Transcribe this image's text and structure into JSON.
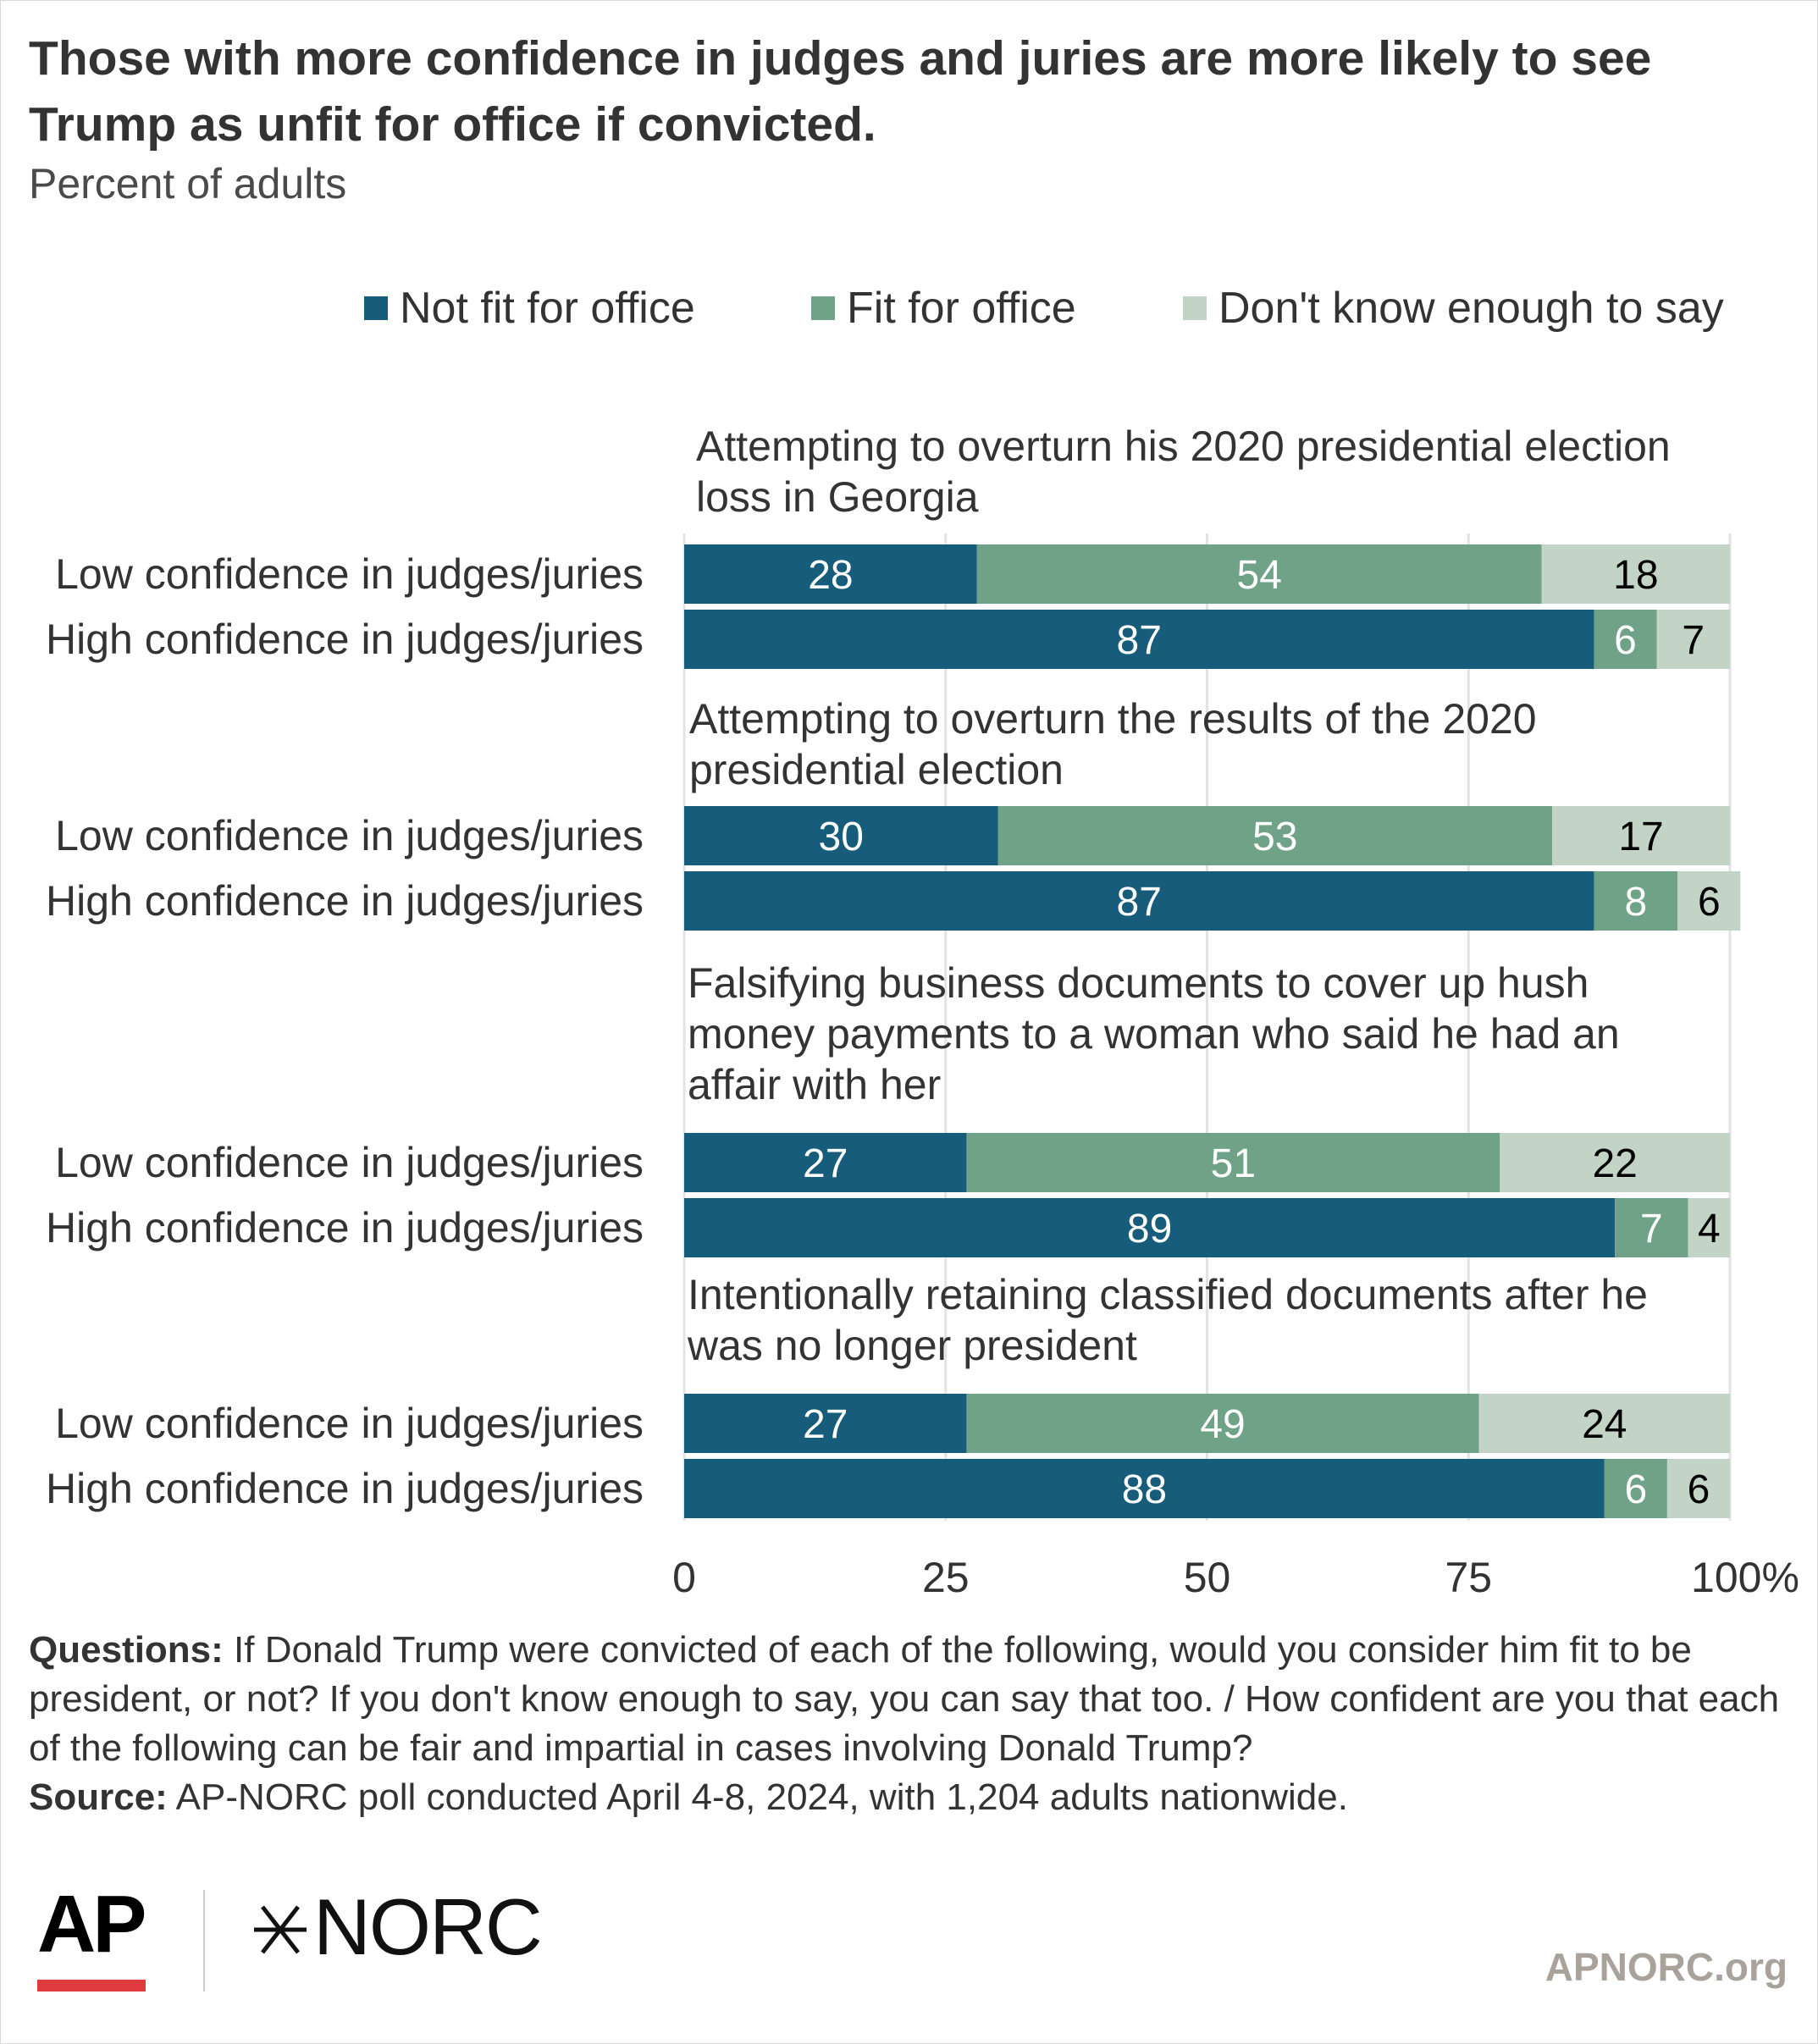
{
  "header": {
    "title": "Those with more confidence in judges and juries are more likely to see Trump as unfit for office if convicted.",
    "subtitle": "Percent of adults"
  },
  "legend": [
    {
      "label": "Not fit for office",
      "color": "#175c7a"
    },
    {
      "label": "Fit for office",
      "color": "#6fa287"
    },
    {
      "label": "Don't know enough to say",
      "color": "#c3d3c6"
    }
  ],
  "chart_data": {
    "type": "bar",
    "orientation": "horizontal",
    "stacked": true,
    "xlim": [
      0,
      100
    ],
    "xticks": [
      "0",
      "25",
      "50",
      "75",
      "100%"
    ],
    "grid": true,
    "legend_position": "top",
    "series_names": [
      "Not fit for office",
      "Fit for office",
      "Don't know enough to say"
    ],
    "series_colors": [
      "#175c7a",
      "#6fa287",
      "#c3d3c6"
    ],
    "label_colors": [
      "#ffffff",
      "#ffffff",
      "#000000"
    ],
    "groups": [
      {
        "title_lines": [
          "Attempting to overturn his 2020 presidential election",
          "loss in Georgia"
        ],
        "rows": [
          {
            "label": "Low confidence in judges/juries",
            "values": [
              28,
              54,
              18
            ]
          },
          {
            "label": "High confidence in judges/juries",
            "values": [
              87,
              6,
              7
            ]
          }
        ]
      },
      {
        "title_lines": [
          "Attempting to overturn the results of the 2020",
          "presidential election"
        ],
        "rows": [
          {
            "label": "Low confidence in judges/juries",
            "values": [
              30,
              53,
              17
            ]
          },
          {
            "label": "High confidence in judges/juries",
            "values": [
              87,
              8,
              6
            ]
          }
        ]
      },
      {
        "title_lines": [
          "Falsifying business documents to cover up hush",
          "money payments to a woman who said he had an",
          "affair with her"
        ],
        "rows": [
          {
            "label": "Low confidence in judges/juries",
            "values": [
              27,
              51,
              22
            ]
          },
          {
            "label": "High confidence in judges/juries",
            "values": [
              89,
              7,
              4
            ]
          }
        ]
      },
      {
        "title_lines": [
          "Intentionally retaining classified documents after he",
          "was no longer president"
        ],
        "rows": [
          {
            "label": "Low confidence in judges/juries",
            "values": [
              27,
              49,
              24
            ]
          },
          {
            "label": "High confidence in judges/juries",
            "values": [
              88,
              6,
              6
            ]
          }
        ]
      }
    ]
  },
  "footer": {
    "questions_label": "Questions:",
    "questions_text": "If Donald Trump were convicted of each of the following, would you consider him fit to be president, or not? If you don't know enough to say, you can say that too. / How confident are you that each of the following can be fair and impartial in cases involving Donald Trump?",
    "source_label": "Source:",
    "source_text": "AP-NORC poll conducted April 4-8, 2024, with 1,204 adults nationwide."
  },
  "branding": {
    "ap_logo": "AP",
    "norc_logo": "NORC",
    "norc_mark_icon": "asterisk-mark-icon",
    "site": "APNORC.org"
  }
}
